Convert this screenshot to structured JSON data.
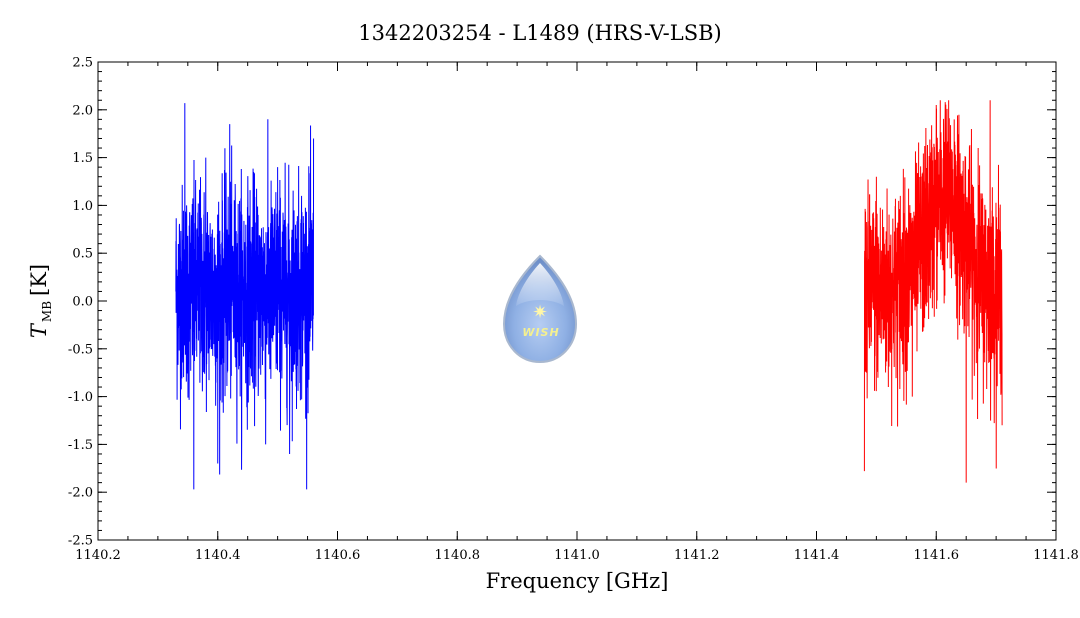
{
  "chart_data": {
    "type": "line",
    "title": "1342203254 - L1489 (HRS-V-LSB)",
    "xlabel": "Frequency [GHz]",
    "ylabel": {
      "symbol": "T",
      "subscript": "MB",
      "unit": "[K]"
    },
    "xlim": [
      1140.2,
      1141.8
    ],
    "ylim": [
      -2.5,
      2.5
    ],
    "x_ticks": [
      "1140.2",
      "1140.4",
      "1140.6",
      "1140.8",
      "1141.0",
      "1141.2",
      "1141.4",
      "1141.6",
      "1141.8"
    ],
    "y_ticks": [
      "2.5",
      "2.0",
      "1.5",
      "1.0",
      "0.5",
      "0.0",
      "-0.5",
      "-1.0",
      "-1.5",
      "-2.0",
      "-2.5"
    ],
    "grid": false,
    "legend": "none",
    "series": [
      {
        "color": "#0000ff",
        "x_range": [
          1140.33,
          1140.56
        ],
        "baseline": 0.1,
        "noise_rms": 0.55,
        "max": 2.07,
        "min": -1.97,
        "x": [
          1140.33,
          1140.345,
          1140.36,
          1140.38,
          1140.4,
          1140.42,
          1140.44,
          1140.46,
          1140.48,
          1140.5,
          1140.52,
          1140.54,
          1140.56
        ],
        "y": [
          0.1,
          2.07,
          -1.97,
          1.5,
          -1.7,
          1.85,
          -1.4,
          1.35,
          -1.5,
          1.4,
          -1.6,
          1.1,
          1.7
        ]
      },
      {
        "color": "#ff0000",
        "x_range": [
          1141.48,
          1141.71
        ],
        "baseline": 0.1,
        "noise_rms": 0.5,
        "line_center": 1141.615,
        "line_peak": 1.0,
        "max": 2.1,
        "min": -1.9,
        "x": [
          1141.48,
          1141.5,
          1141.52,
          1141.54,
          1141.56,
          1141.58,
          1141.6,
          1141.615,
          1141.63,
          1141.65,
          1141.67,
          1141.69,
          1141.71
        ],
        "y": [
          -1.78,
          1.3,
          -0.9,
          1.1,
          -1.0,
          1.25,
          2.05,
          2.08,
          1.9,
          -1.9,
          1.6,
          2.1,
          -1.3
        ]
      }
    ],
    "logo_text": "WISH"
  }
}
